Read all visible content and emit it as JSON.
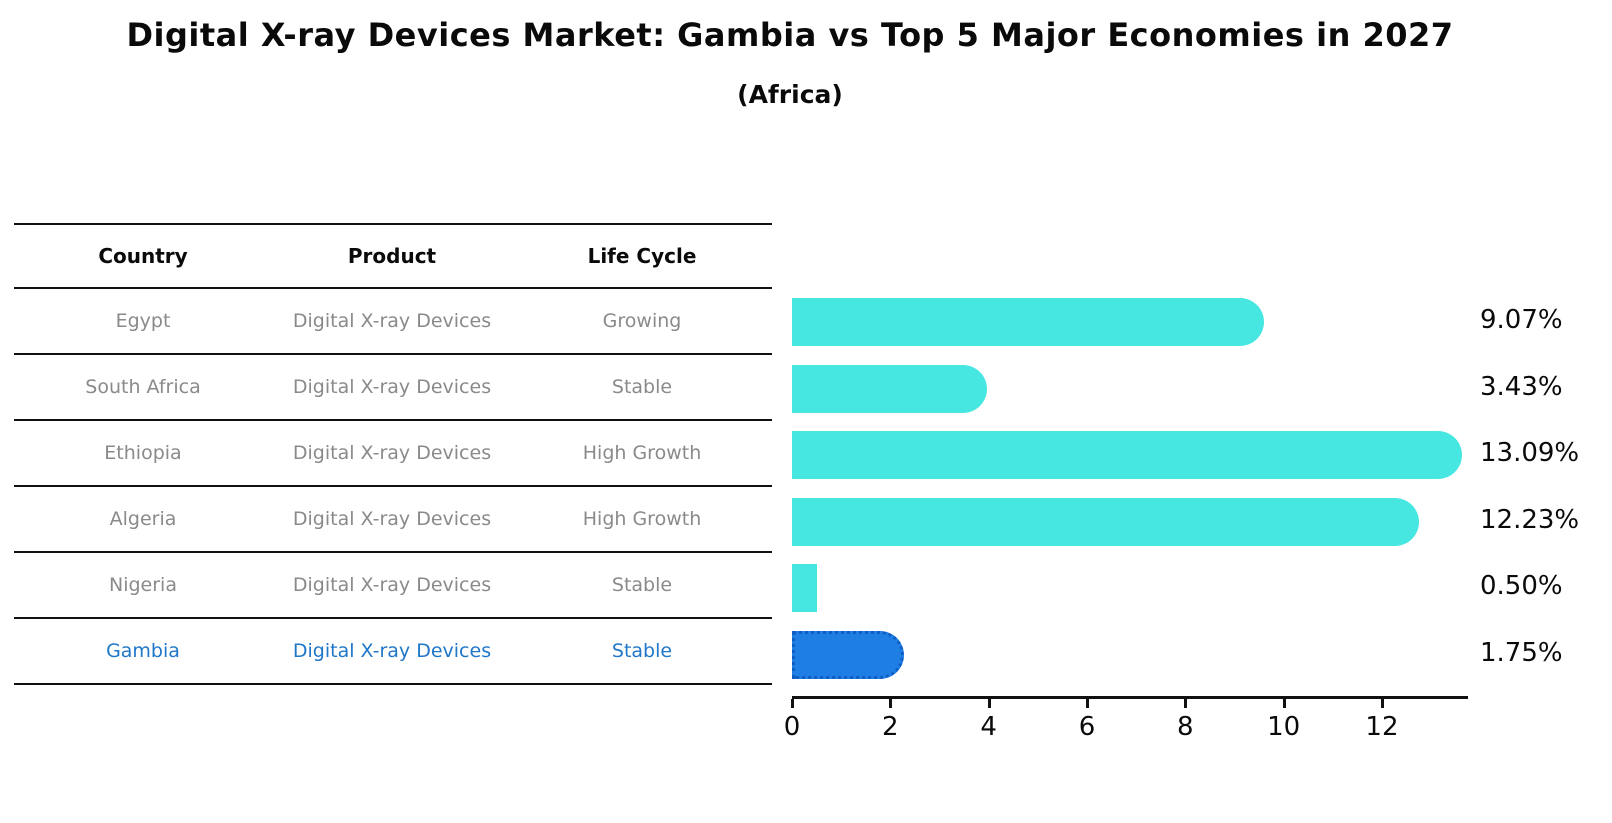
{
  "title": "Digital X-ray Devices Market: Gambia vs Top 5 Major Economies in 2027",
  "subtitle": "(Africa)",
  "table": {
    "headers": [
      "Country",
      "Product",
      "Life Cycle"
    ],
    "rows": [
      {
        "country": "Egypt",
        "product": "Digital X-ray Devices",
        "life_cycle": "Growing",
        "highlight": false
      },
      {
        "country": "South Africa",
        "product": "Digital X-ray Devices",
        "life_cycle": "Stable",
        "highlight": false
      },
      {
        "country": "Ethiopia",
        "product": "Digital X-ray Devices",
        "life_cycle": "High Growth",
        "highlight": false
      },
      {
        "country": "Algeria",
        "product": "Digital X-ray Devices",
        "life_cycle": "High Growth",
        "highlight": false
      },
      {
        "country": "Nigeria",
        "product": "Digital X-ray Devices",
        "life_cycle": "Stable",
        "highlight": false
      },
      {
        "country": "Gambia",
        "product": "Digital X-ray Devices",
        "life_cycle": "Stable",
        "highlight": true
      }
    ]
  },
  "chart_data": {
    "type": "bar",
    "orientation": "horizontal",
    "title": "Digital X-ray Devices Market: Gambia vs Top 5 Major Economies in 2027 (Africa)",
    "categories": [
      "Egypt",
      "South Africa",
      "Ethiopia",
      "Algeria",
      "Nigeria",
      "Gambia"
    ],
    "values": [
      9.07,
      3.43,
      13.09,
      12.23,
      0.5,
      1.75
    ],
    "value_labels": [
      "9.07%",
      "3.43%",
      "13.09%",
      "12.23%",
      "0.50%",
      "1.75%"
    ],
    "xticks": [
      0,
      2,
      4,
      6,
      8,
      10,
      12
    ],
    "xlim": [
      0,
      13.75
    ],
    "grid": false,
    "legend": "none",
    "bar_color": "#45e7e0",
    "highlight_bar_color": "#1e7ee4",
    "highlight_index": 5,
    "highlight_text_color": "#2077c8",
    "text_color": "#8a8a8a"
  }
}
